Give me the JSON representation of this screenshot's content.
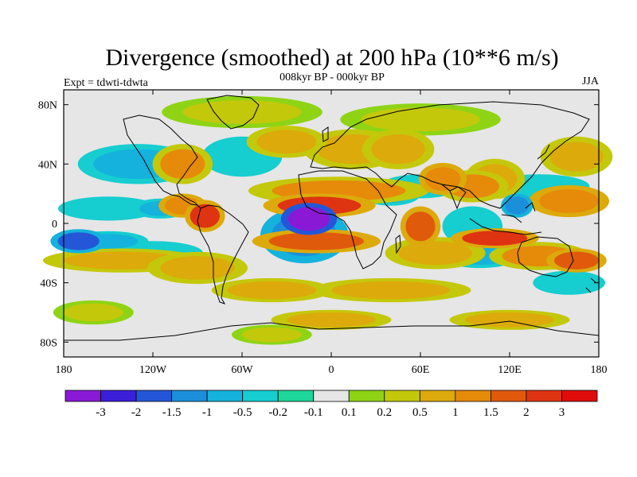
{
  "chart_data": {
    "type": "heatmap",
    "title": "Divergence (smoothed) at 200 hPa (10**6 m/s)",
    "left_label": "Expt = tdwti-tdwta",
    "center_label": "008kyr BP - 000kyr BP",
    "right_label": "JJA",
    "x_range": [
      -180,
      180
    ],
    "y_range": [
      -90,
      90
    ],
    "x_ticks": [
      {
        "value": -180,
        "label": "180"
      },
      {
        "value": -120,
        "label": "120W"
      },
      {
        "value": -60,
        "label": "60W"
      },
      {
        "value": 0,
        "label": "0"
      },
      {
        "value": 60,
        "label": "60E"
      },
      {
        "value": 120,
        "label": "120E"
      },
      {
        "value": 180,
        "label": "180"
      }
    ],
    "y_ticks": [
      {
        "value": 80,
        "label": "80N"
      },
      {
        "value": 40,
        "label": "40N"
      },
      {
        "value": 0,
        "label": "0"
      },
      {
        "value": -40,
        "label": "40S"
      },
      {
        "value": -80,
        "label": "80S"
      }
    ],
    "levels": [
      -3,
      -2,
      -1.5,
      -1,
      -0.5,
      -0.2,
      -0.1,
      0.1,
      0.2,
      0.5,
      1,
      1.5,
      2,
      3
    ],
    "level_labels": [
      "-3",
      "-2",
      "-1.5",
      "-1",
      "-0.5",
      "-0.2",
      "-0.1",
      "0.1",
      "0.2",
      "0.5",
      "1",
      "1.5",
      "2",
      "3"
    ],
    "colors": [
      "#8a19d6",
      "#3a1fd9",
      "#2457d8",
      "#1c8fda",
      "#14b2dc",
      "#16cdd0",
      "#1ed79a",
      "#e6e6e6",
      "#8ed414",
      "#c4c80a",
      "#dcaa0a",
      "#e68a0a",
      "#e05a0c",
      "#de3412",
      "#e00c0c"
    ],
    "features": [
      {
        "lon": -15,
        "lat": 3,
        "value": -3.4,
        "rx": 14,
        "ry": 8
      },
      {
        "lon": -18,
        "lat": -8,
        "value": -1.2,
        "rx": 22,
        "ry": 14
      },
      {
        "lon": -8,
        "lat": 12,
        "value": 2.2,
        "rx": 28,
        "ry": 6
      },
      {
        "lon": 5,
        "lat": 22,
        "value": 1.0,
        "rx": 45,
        "ry": 7
      },
      {
        "lon": -10,
        "lat": -12,
        "value": 1.8,
        "rx": 32,
        "ry": 6
      },
      {
        "lon": -85,
        "lat": 5,
        "value": 2.0,
        "rx": 10,
        "ry": 8
      },
      {
        "lon": -100,
        "lat": 12,
        "value": 1.2,
        "rx": 12,
        "ry": 6
      },
      {
        "lon": -115,
        "lat": 10,
        "value": -0.6,
        "rx": 14,
        "ry": 5
      },
      {
        "lon": -150,
        "lat": 10,
        "value": -0.5,
        "rx": 25,
        "ry": 6
      },
      {
        "lon": -170,
        "lat": -12,
        "value": -2.0,
        "rx": 14,
        "ry": 6
      },
      {
        "lon": -150,
        "lat": -12,
        "value": -0.6,
        "rx": 20,
        "ry": 5
      },
      {
        "lon": -140,
        "lat": -25,
        "value": 0.6,
        "rx": 40,
        "ry": 6
      },
      {
        "lon": -120,
        "lat": -20,
        "value": -0.5,
        "rx": 25,
        "ry": 6
      },
      {
        "lon": -90,
        "lat": -30,
        "value": 0.8,
        "rx": 25,
        "ry": 8
      },
      {
        "lon": -130,
        "lat": 40,
        "value": -0.6,
        "rx": 30,
        "ry": 10
      },
      {
        "lon": -100,
        "lat": 40,
        "value": 1.0,
        "rx": 15,
        "ry": 10
      },
      {
        "lon": -60,
        "lat": 45,
        "value": -0.5,
        "rx": 20,
        "ry": 10
      },
      {
        "lon": -30,
        "lat": 55,
        "value": 0.6,
        "rx": 20,
        "ry": 8
      },
      {
        "lon": -60,
        "lat": 75,
        "value": 0.4,
        "rx": 40,
        "ry": 8
      },
      {
        "lon": 15,
        "lat": 50,
        "value": 0.5,
        "rx": 25,
        "ry": 10
      },
      {
        "lon": 45,
        "lat": 50,
        "value": 0.8,
        "rx": 18,
        "ry": 10
      },
      {
        "lon": 40,
        "lat": 20,
        "value": -0.6,
        "rx": 15,
        "ry": 6
      },
      {
        "lon": 60,
        "lat": 25,
        "value": -0.5,
        "rx": 20,
        "ry": 6
      },
      {
        "lon": 75,
        "lat": 30,
        "value": 1.2,
        "rx": 12,
        "ry": 8
      },
      {
        "lon": 95,
        "lat": 25,
        "value": 1.0,
        "rx": 18,
        "ry": 8
      },
      {
        "lon": 110,
        "lat": 30,
        "value": 0.8,
        "rx": 15,
        "ry": 10
      },
      {
        "lon": 125,
        "lat": 12,
        "value": -1.5,
        "rx": 8,
        "ry": 6
      },
      {
        "lon": 140,
        "lat": 25,
        "value": -0.5,
        "rx": 25,
        "ry": 6
      },
      {
        "lon": 160,
        "lat": 15,
        "value": 1.2,
        "rx": 20,
        "ry": 8
      },
      {
        "lon": 165,
        "lat": 45,
        "value": 0.6,
        "rx": 18,
        "ry": 10
      },
      {
        "lon": 60,
        "lat": -2,
        "value": 1.6,
        "rx": 10,
        "ry": 10
      },
      {
        "lon": 70,
        "lat": -20,
        "value": 0.7,
        "rx": 25,
        "ry": 8
      },
      {
        "lon": 95,
        "lat": -2,
        "value": -0.5,
        "rx": 15,
        "ry": 10
      },
      {
        "lon": 110,
        "lat": -10,
        "value": 2.0,
        "rx": 22,
        "ry": 5
      },
      {
        "lon": 100,
        "lat": -22,
        "value": -0.6,
        "rx": 20,
        "ry": 6
      },
      {
        "lon": 140,
        "lat": -22,
        "value": 1.0,
        "rx": 25,
        "ry": 7
      },
      {
        "lon": 165,
        "lat": -25,
        "value": 1.8,
        "rx": 15,
        "ry": 6
      },
      {
        "lon": 160,
        "lat": -40,
        "value": -0.5,
        "rx": 18,
        "ry": 6
      },
      {
        "lon": 40,
        "lat": -45,
        "value": 0.5,
        "rx": 40,
        "ry": 6
      },
      {
        "lon": -40,
        "lat": -45,
        "value": 0.5,
        "rx": 30,
        "ry": 6
      },
      {
        "lon": -160,
        "lat": -60,
        "value": 0.4,
        "rx": 20,
        "ry": 6
      },
      {
        "lon": 0,
        "lat": -65,
        "value": 0.6,
        "rx": 30,
        "ry": 5
      },
      {
        "lon": 120,
        "lat": -65,
        "value": 0.6,
        "rx": 30,
        "ry": 5
      },
      {
        "lon": -40,
        "lat": -75,
        "value": 0.4,
        "rx": 20,
        "ry": 5
      },
      {
        "lon": 60,
        "lat": 70,
        "value": 0.3,
        "rx": 40,
        "ry": 8
      }
    ]
  }
}
